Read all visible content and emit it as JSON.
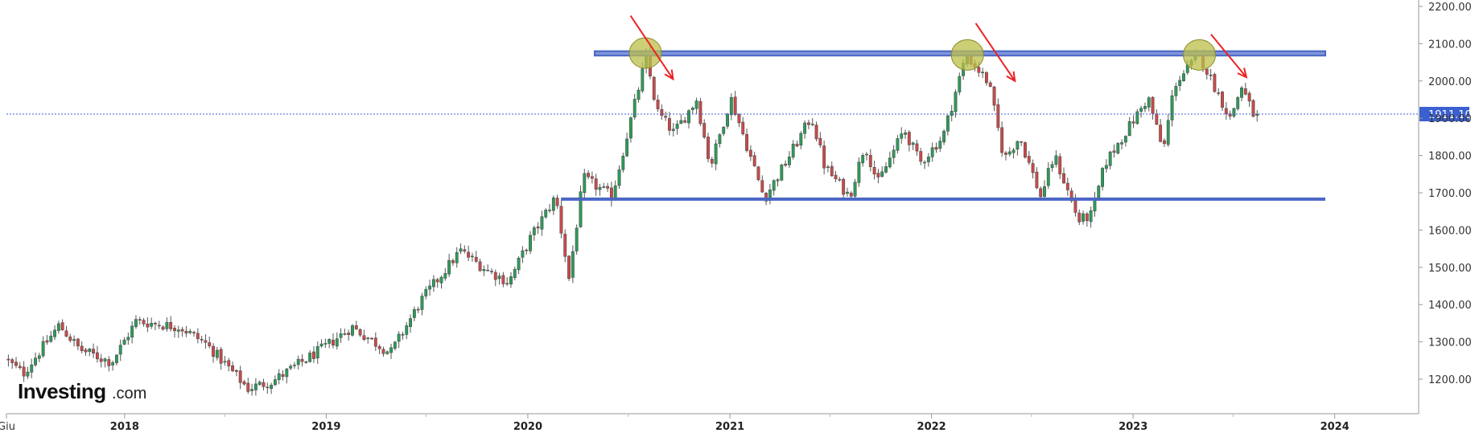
{
  "brand": {
    "logo_main": "Investing",
    "logo_sub": ".com"
  },
  "current_price_label": "1911.10",
  "colors": {
    "up": "#2e9a5a",
    "down": "#c94a4a",
    "axis": "#999999",
    "zone": "#4a66c4",
    "arrow": "#ee2222",
    "circle": "#bcbf4a",
    "price_line": "#3a5fd0"
  },
  "chart_data": {
    "type": "candlestick",
    "y_ticks": [
      "1200.00",
      "1300.00",
      "1400.00",
      "1500.00",
      "1600.00",
      "1700.00",
      "1800.00",
      "1900.00",
      "2000.00",
      "2100.00",
      "2200.00"
    ],
    "y_range": [
      1100,
      2200
    ],
    "x_range": [
      "2017-06-01",
      "2024-06-01"
    ],
    "x_labels": [
      {
        "date": "2017-06-01",
        "text": "Giu",
        "bold": false
      },
      {
        "date": "2018-01-01",
        "text": "2018",
        "bold": true
      },
      {
        "date": "2019-01-01",
        "text": "2019",
        "bold": true
      },
      {
        "date": "2020-01-01",
        "text": "2020",
        "bold": true
      },
      {
        "date": "2021-01-01",
        "text": "2021",
        "bold": true
      },
      {
        "date": "2022-01-01",
        "text": "2022",
        "bold": true
      },
      {
        "date": "2023-01-01",
        "text": "2023",
        "bold": true
      },
      {
        "date": "2024-01-01",
        "text": "2024",
        "bold": true
      }
    ],
    "current_price": 1911.1,
    "resistance_band": {
      "from": "2020-05-01",
      "to": "2023-12-15",
      "low": 2068,
      "high": 2080
    },
    "support_line": {
      "from": "2020-03-01",
      "to": "2023-12-15",
      "value": 1683
    },
    "peak_circles": [
      {
        "date": "2020-08-01",
        "value": 2075
      },
      {
        "date": "2022-03-07",
        "value": 2070
      },
      {
        "date": "2023-05-01",
        "value": 2070
      }
    ],
    "arrows": [
      {
        "from_date": "2020-07-05",
        "from_value": 2175,
        "to_date": "2020-09-20",
        "to_value": 2005
      },
      {
        "from_date": "2022-03-22",
        "from_value": 2155,
        "to_date": "2022-06-01",
        "to_value": 2000
      },
      {
        "from_date": "2023-05-22",
        "from_value": 2125,
        "to_date": "2023-07-25",
        "to_value": 2010
      }
    ],
    "series_path": [
      [
        "2017-06-01",
        1255
      ],
      [
        "2017-07-05",
        1215
      ],
      [
        "2017-09-08",
        1345
      ],
      [
        "2017-10-15",
        1280
      ],
      [
        "2017-12-12",
        1245
      ],
      [
        "2018-01-25",
        1355
      ],
      [
        "2018-04-15",
        1340
      ],
      [
        "2018-06-01",
        1295
      ],
      [
        "2018-08-16",
        1175
      ],
      [
        "2018-09-30",
        1195
      ],
      [
        "2019-01-01",
        1285
      ],
      [
        "2019-02-20",
        1340
      ],
      [
        "2019-05-01",
        1270
      ],
      [
        "2019-06-25",
        1410
      ],
      [
        "2019-09-04",
        1545
      ],
      [
        "2019-10-20",
        1495
      ],
      [
        "2019-12-01",
        1460
      ],
      [
        "2020-01-08",
        1575
      ],
      [
        "2020-02-24",
        1690
      ],
      [
        "2020-03-19",
        1470
      ],
      [
        "2020-04-14",
        1740
      ],
      [
        "2020-06-05",
        1690
      ],
      [
        "2020-08-06",
        2065
      ],
      [
        "2020-08-25",
        1920
      ],
      [
        "2020-09-25",
        1860
      ],
      [
        "2020-11-05",
        1950
      ],
      [
        "2020-11-30",
        1770
      ],
      [
        "2021-01-06",
        1955
      ],
      [
        "2021-03-08",
        1685
      ],
      [
        "2021-04-15",
        1780
      ],
      [
        "2021-06-01",
        1905
      ],
      [
        "2021-06-25",
        1770
      ],
      [
        "2021-08-09",
        1690
      ],
      [
        "2021-09-06",
        1830
      ],
      [
        "2021-09-29",
        1725
      ],
      [
        "2021-11-16",
        1870
      ],
      [
        "2021-12-15",
        1780
      ],
      [
        "2022-01-25",
        1850
      ],
      [
        "2022-03-08",
        2070
      ],
      [
        "2022-04-18",
        1995
      ],
      [
        "2022-05-16",
        1790
      ],
      [
        "2022-06-13",
        1850
      ],
      [
        "2022-07-21",
        1690
      ],
      [
        "2022-08-15",
        1800
      ],
      [
        "2022-09-28",
        1625
      ],
      [
        "2022-10-21",
        1640
      ],
      [
        "2022-11-15",
        1780
      ],
      [
        "2023-02-01",
        1955
      ],
      [
        "2023-02-28",
        1810
      ],
      [
        "2023-03-20",
        1990
      ],
      [
        "2023-05-04",
        2070
      ],
      [
        "2023-06-29",
        1900
      ],
      [
        "2023-07-20",
        1985
      ],
      [
        "2023-08-10",
        1911
      ]
    ]
  }
}
